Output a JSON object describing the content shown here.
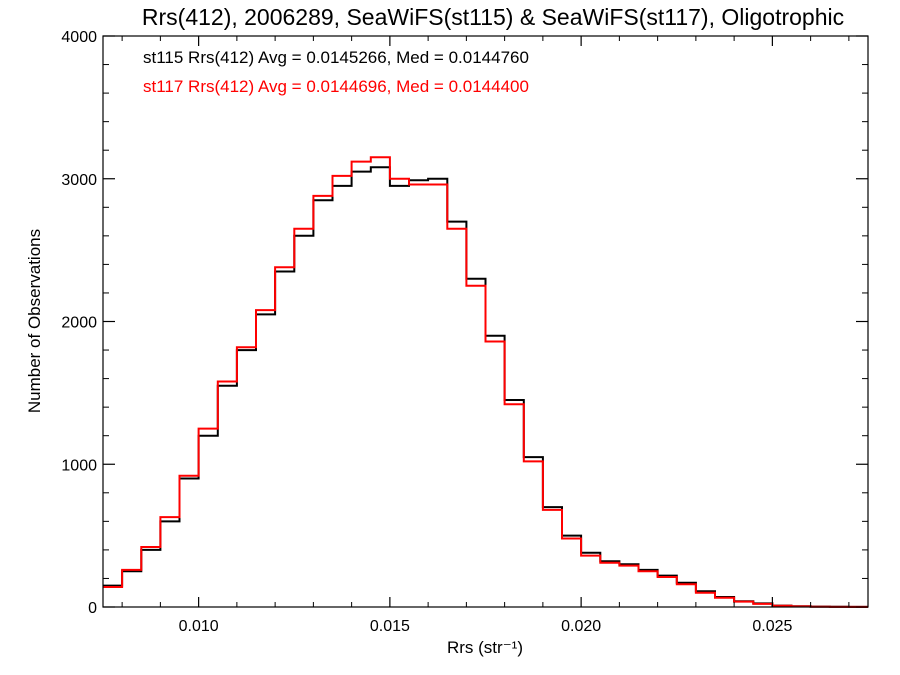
{
  "chart_data": {
    "type": "line",
    "title": "Rrs(412), 2006289, SeaWiFS(st115) & SeaWiFS(st117), Oligotrophic",
    "xlabel": "Rrs (str⁻¹)",
    "ylabel": "Number of Observations",
    "xlim": [
      0.0075,
      0.0275
    ],
    "ylim": [
      0,
      4000
    ],
    "x_ticks": [
      "0.010",
      "0.015",
      "0.020",
      "0.025"
    ],
    "y_ticks": [
      "0",
      "1000",
      "2000",
      "3000",
      "4000"
    ],
    "grid": false,
    "legend_position": "top-left",
    "annotations": [
      "st115 Rrs(412) Avg = 0.0145266, Med = 0.0144760",
      "st117 Rrs(412) Avg = 0.0144696, Med = 0.0144400"
    ],
    "series": [
      {
        "color": "#000000",
        "x": [
          0.0075,
          0.008,
          0.0085,
          0.009,
          0.0095,
          0.01,
          0.0105,
          0.011,
          0.0115,
          0.012,
          0.0125,
          0.013,
          0.0135,
          0.014,
          0.0145,
          0.015,
          0.0155,
          0.016,
          0.0165,
          0.017,
          0.0175,
          0.018,
          0.0185,
          0.019,
          0.0195,
          0.02,
          0.0205,
          0.021,
          0.0215,
          0.022,
          0.0225,
          0.023,
          0.0235,
          0.024,
          0.0245,
          0.025,
          0.0255,
          0.026,
          0.0265,
          0.027,
          0.0275
        ],
        "values": [
          150,
          250,
          400,
          600,
          900,
          1200,
          1550,
          1800,
          2050,
          2350,
          2600,
          2850,
          2950,
          3050,
          3080,
          2950,
          2990,
          3000,
          2700,
          2300,
          1900,
          1450,
          1050,
          700,
          500,
          380,
          320,
          300,
          260,
          220,
          170,
          110,
          70,
          40,
          25,
          10,
          5,
          3,
          2,
          1,
          1
        ]
      },
      {
        "color": "#ff0000",
        "x": [
          0.0075,
          0.008,
          0.0085,
          0.009,
          0.0095,
          0.01,
          0.0105,
          0.011,
          0.0115,
          0.012,
          0.0125,
          0.013,
          0.0135,
          0.014,
          0.0145,
          0.015,
          0.0155,
          0.016,
          0.0165,
          0.017,
          0.0175,
          0.018,
          0.0185,
          0.019,
          0.0195,
          0.02,
          0.0205,
          0.021,
          0.0215,
          0.022,
          0.0225,
          0.023,
          0.0235,
          0.024,
          0.0245,
          0.025,
          0.0255,
          0.026,
          0.0265,
          0.027,
          0.0275
        ],
        "values": [
          140,
          260,
          420,
          630,
          920,
          1250,
          1580,
          1820,
          2080,
          2380,
          2650,
          2880,
          3020,
          3120,
          3150,
          3000,
          2960,
          2960,
          2650,
          2250,
          1860,
          1420,
          1020,
          680,
          480,
          360,
          310,
          290,
          250,
          210,
          160,
          100,
          65,
          38,
          22,
          9,
          4,
          2,
          1,
          1,
          1
        ]
      }
    ]
  }
}
